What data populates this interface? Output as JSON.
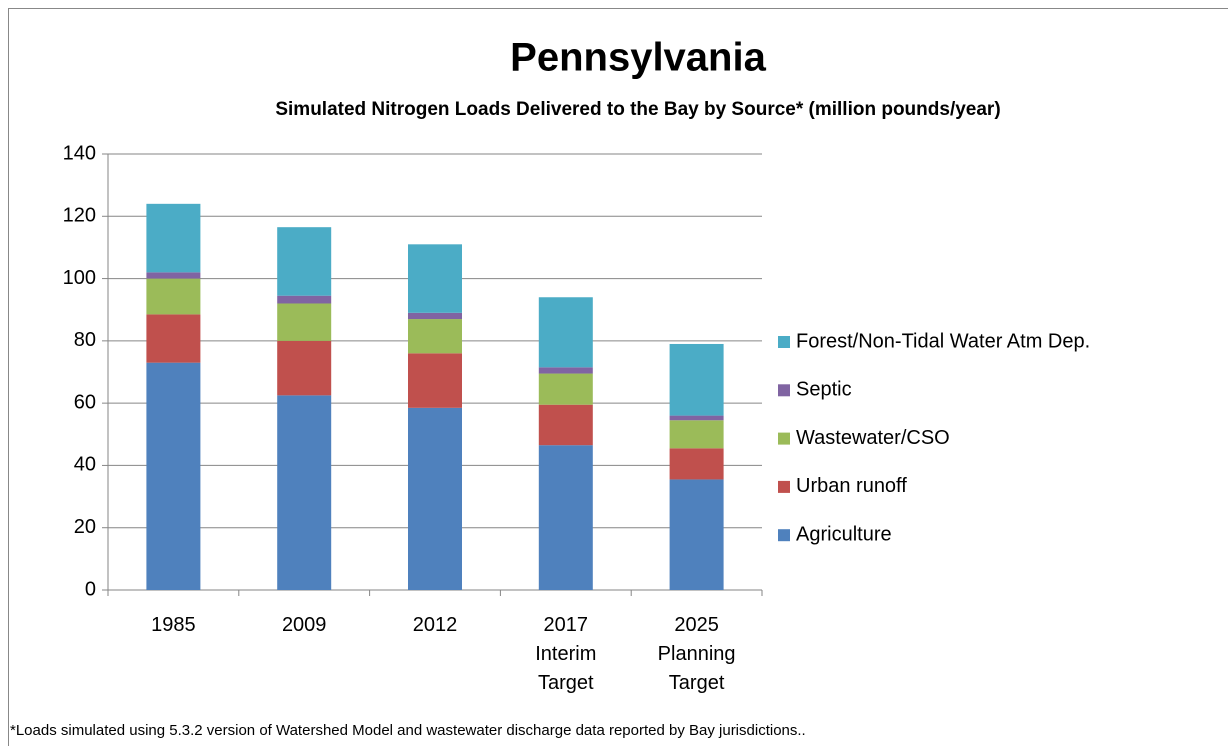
{
  "chart_data": {
    "type": "bar",
    "stacked": true,
    "title": "Pennsylvania",
    "subtitle": "Simulated Nitrogen Loads Delivered to the Bay by Source* (million pounds/year)",
    "footnote": "*Loads simulated using 5.3.2 version of Watershed Model and wastewater discharge data reported by Bay jurisdictions..",
    "categories": [
      [
        "1985"
      ],
      [
        "2009"
      ],
      [
        "2012"
      ],
      [
        "2017",
        "Interim",
        "Target"
      ],
      [
        "2025",
        "Planning",
        "Target"
      ]
    ],
    "series": [
      {
        "name": "Agriculture",
        "color": "#4f81bd",
        "values": [
          73,
          62.5,
          58.5,
          46.5,
          35.5
        ]
      },
      {
        "name": "Urban runoff",
        "color": "#c0504d",
        "values": [
          15.5,
          17.5,
          17.5,
          13,
          10
        ]
      },
      {
        "name": "Wastewater/CSO",
        "color": "#9bbb59",
        "values": [
          11.5,
          12,
          11,
          10,
          9
        ]
      },
      {
        "name": "Septic",
        "color": "#8064a2",
        "values": [
          2,
          2.5,
          2,
          2,
          1.5
        ]
      },
      {
        "name": "Forest/Non-Tidal Water Atm Dep.",
        "color": "#4bacc6",
        "values": [
          22,
          22,
          22,
          22.5,
          23
        ]
      }
    ],
    "ylim": [
      0,
      140
    ],
    "yticks": [
      0,
      20,
      40,
      60,
      80,
      100,
      120,
      140
    ],
    "grid": true,
    "legend": "right"
  }
}
